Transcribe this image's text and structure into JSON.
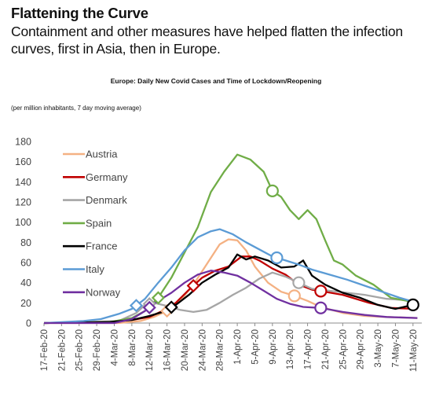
{
  "header": {
    "headline": "Flattening the Curve",
    "subhead": "Containment and other measures have helped flatten the infection curves, first in Asia, then in Europe."
  },
  "chart": {
    "title": "Europe: Daily New Covid Cases and Time of Lockdown/Reopening",
    "note": "(per million inhabitants, 7 day moving average)"
  },
  "chart_data": {
    "type": "line",
    "title": "Europe: Daily New Covid Cases and Time of Lockdown/Reopening",
    "subtitle": "(per million inhabitants, 7 day moving average)",
    "xlabel": "",
    "ylabel": "",
    "ylim": [
      0,
      180
    ],
    "yticks": [
      0,
      20,
      40,
      60,
      80,
      100,
      120,
      140,
      160,
      180
    ],
    "xtick_labels": [
      "17-Feb-20",
      "21-Feb-20",
      "25-Feb-20",
      "29-Feb-20",
      "4-Mar-20",
      "8-Mar-20",
      "12-Mar-20",
      "16-Mar-20",
      "20-Mar-20",
      "24-Mar-20",
      "28-Mar-20",
      "1-Apr-20",
      "5-Apr-20",
      "9-Apr-20",
      "13-Apr-20",
      "17-Apr-20",
      "21-Apr-20",
      "25-Apr-20",
      "29-Apr-20",
      "3-May-20",
      "7-May-20",
      "11-May-20"
    ],
    "x_start": "2020-02-17",
    "grid": false,
    "legend_position": "left",
    "markers": {
      "lockdown": "diamond",
      "reopening": "circle"
    },
    "series": [
      {
        "name": "Austria",
        "color": "#f4b183",
        "points": [
          [
            "2020-02-17",
            0
          ],
          [
            "2020-03-05",
            0
          ],
          [
            "2020-03-10",
            2
          ],
          [
            "2020-03-13",
            6
          ],
          [
            "2020-03-16",
            12
          ],
          [
            "2020-03-19",
            22
          ],
          [
            "2020-03-22",
            38
          ],
          [
            "2020-03-25",
            58
          ],
          [
            "2020-03-28",
            78
          ],
          [
            "2020-03-30",
            83
          ],
          [
            "2020-04-01",
            82
          ],
          [
            "2020-04-03",
            72
          ],
          [
            "2020-04-05",
            56
          ],
          [
            "2020-04-08",
            40
          ],
          [
            "2020-04-11",
            31
          ],
          [
            "2020-04-14",
            27
          ],
          [
            "2020-04-17",
            22
          ],
          [
            "2020-04-20",
            16
          ],
          [
            "2020-04-25",
            10
          ],
          [
            "2020-04-30",
            7
          ],
          [
            "2020-05-05",
            6
          ],
          [
            "2020-05-12",
            5
          ]
        ],
        "lockdown": "2020-03-16",
        "reopening": "2020-04-14"
      },
      {
        "name": "Germany",
        "color": "#c00000",
        "points": [
          [
            "2020-02-17",
            0
          ],
          [
            "2020-03-01",
            1
          ],
          [
            "2020-03-08",
            3
          ],
          [
            "2020-03-12",
            6
          ],
          [
            "2020-03-15",
            12
          ],
          [
            "2020-03-18",
            20
          ],
          [
            "2020-03-21",
            33
          ],
          [
            "2020-03-24",
            45
          ],
          [
            "2020-03-27",
            52
          ],
          [
            "2020-03-30",
            56
          ],
          [
            "2020-04-02",
            66
          ],
          [
            "2020-04-04",
            66
          ],
          [
            "2020-04-06",
            62
          ],
          [
            "2020-04-09",
            54
          ],
          [
            "2020-04-12",
            48
          ],
          [
            "2020-04-15",
            38
          ],
          [
            "2020-04-18",
            33
          ],
          [
            "2020-04-21",
            31
          ],
          [
            "2020-04-25",
            28
          ],
          [
            "2020-05-01",
            20
          ],
          [
            "2020-05-06",
            15
          ],
          [
            "2020-05-12",
            14
          ]
        ],
        "lockdown": "2020-03-22",
        "reopening": "2020-04-20"
      },
      {
        "name": "Denmark",
        "color": "#a6a6a6",
        "points": [
          [
            "2020-02-17",
            0
          ],
          [
            "2020-03-05",
            2
          ],
          [
            "2020-03-09",
            10
          ],
          [
            "2020-03-11",
            18
          ],
          [
            "2020-03-13",
            20
          ],
          [
            "2020-03-16",
            17
          ],
          [
            "2020-03-19",
            13
          ],
          [
            "2020-03-22",
            11
          ],
          [
            "2020-03-25",
            13
          ],
          [
            "2020-03-28",
            20
          ],
          [
            "2020-03-31",
            28
          ],
          [
            "2020-04-03",
            35
          ],
          [
            "2020-04-06",
            44
          ],
          [
            "2020-04-09",
            50
          ],
          [
            "2020-04-12",
            46
          ],
          [
            "2020-04-15",
            40
          ],
          [
            "2020-04-18",
            34
          ],
          [
            "2020-04-22",
            32
          ],
          [
            "2020-04-26",
            30
          ],
          [
            "2020-04-30",
            28
          ],
          [
            "2020-05-05",
            24
          ],
          [
            "2020-05-12",
            22
          ]
        ],
        "lockdown": "2020-03-12",
        "reopening": "2020-04-15"
      },
      {
        "name": "Spain",
        "color": "#70ad47",
        "points": [
          [
            "2020-02-17",
            0
          ],
          [
            "2020-03-03",
            1
          ],
          [
            "2020-03-08",
            5
          ],
          [
            "2020-03-11",
            12
          ],
          [
            "2020-03-14",
            25
          ],
          [
            "2020-03-17",
            45
          ],
          [
            "2020-03-20",
            70
          ],
          [
            "2020-03-23",
            95
          ],
          [
            "2020-03-26",
            130
          ],
          [
            "2020-03-29",
            150
          ],
          [
            "2020-04-01",
            167
          ],
          [
            "2020-04-04",
            162
          ],
          [
            "2020-04-07",
            150
          ],
          [
            "2020-04-09",
            131
          ],
          [
            "2020-04-11",
            125
          ],
          [
            "2020-04-13",
            112
          ],
          [
            "2020-04-15",
            103
          ],
          [
            "2020-04-17",
            112
          ],
          [
            "2020-04-19",
            103
          ],
          [
            "2020-04-21",
            82
          ],
          [
            "2020-04-23",
            62
          ],
          [
            "2020-04-25",
            58
          ],
          [
            "2020-04-28",
            47
          ],
          [
            "2020-05-02",
            38
          ],
          [
            "2020-05-06",
            25
          ],
          [
            "2020-05-12",
            20
          ]
        ],
        "lockdown": "2020-03-14",
        "reopening": "2020-04-09"
      },
      {
        "name": "France",
        "color": "#000000",
        "points": [
          [
            "2020-02-17",
            0
          ],
          [
            "2020-03-03",
            1
          ],
          [
            "2020-03-08",
            3
          ],
          [
            "2020-03-12",
            7
          ],
          [
            "2020-03-15",
            11
          ],
          [
            "2020-03-18",
            18
          ],
          [
            "2020-03-21",
            28
          ],
          [
            "2020-03-24",
            40
          ],
          [
            "2020-03-27",
            48
          ],
          [
            "2020-03-30",
            55
          ],
          [
            "2020-04-01",
            68
          ],
          [
            "2020-04-03",
            63
          ],
          [
            "2020-04-05",
            66
          ],
          [
            "2020-04-08",
            62
          ],
          [
            "2020-04-11",
            55
          ],
          [
            "2020-04-14",
            56
          ],
          [
            "2020-04-16",
            62
          ],
          [
            "2020-04-18",
            47
          ],
          [
            "2020-04-21",
            38
          ],
          [
            "2020-04-25",
            30
          ],
          [
            "2020-04-29",
            25
          ],
          [
            "2020-05-03",
            18
          ],
          [
            "2020-05-07",
            14
          ],
          [
            "2020-05-11",
            18
          ]
        ],
        "lockdown": "2020-03-17",
        "reopening": "2020-05-11"
      },
      {
        "name": "Italy",
        "color": "#5b9bd5",
        "points": [
          [
            "2020-02-17",
            0
          ],
          [
            "2020-02-26",
            2
          ],
          [
            "2020-03-01",
            4
          ],
          [
            "2020-03-05",
            9
          ],
          [
            "2020-03-08",
            14
          ],
          [
            "2020-03-11",
            24
          ],
          [
            "2020-03-14",
            40
          ],
          [
            "2020-03-17",
            55
          ],
          [
            "2020-03-20",
            72
          ],
          [
            "2020-03-23",
            85
          ],
          [
            "2020-03-26",
            91
          ],
          [
            "2020-03-28",
            93
          ],
          [
            "2020-03-31",
            88
          ],
          [
            "2020-04-03",
            80
          ],
          [
            "2020-04-06",
            73
          ],
          [
            "2020-04-09",
            66
          ],
          [
            "2020-04-12",
            62
          ],
          [
            "2020-04-15",
            58
          ],
          [
            "2020-04-18",
            53
          ],
          [
            "2020-04-22",
            48
          ],
          [
            "2020-04-26",
            43
          ],
          [
            "2020-04-30",
            37
          ],
          [
            "2020-05-04",
            31
          ],
          [
            "2020-05-08",
            25
          ],
          [
            "2020-05-12",
            20
          ]
        ],
        "lockdown": "2020-03-09",
        "reopening": "2020-04-10"
      },
      {
        "name": "Norway",
        "color": "#7030a0",
        "points": [
          [
            "2020-02-17",
            0
          ],
          [
            "2020-03-04",
            0
          ],
          [
            "2020-03-08",
            4
          ],
          [
            "2020-03-11",
            12
          ],
          [
            "2020-03-14",
            22
          ],
          [
            "2020-03-17",
            30
          ],
          [
            "2020-03-20",
            40
          ],
          [
            "2020-03-23",
            48
          ],
          [
            "2020-03-26",
            52
          ],
          [
            "2020-03-29",
            50
          ],
          [
            "2020-04-01",
            47
          ],
          [
            "2020-04-04",
            40
          ],
          [
            "2020-04-07",
            32
          ],
          [
            "2020-04-10",
            24
          ],
          [
            "2020-04-13",
            19
          ],
          [
            "2020-04-16",
            16
          ],
          [
            "2020-04-20",
            15
          ],
          [
            "2020-04-25",
            11
          ],
          [
            "2020-04-30",
            8
          ],
          [
            "2020-05-05",
            6
          ],
          [
            "2020-05-12",
            5
          ]
        ],
        "lockdown": "2020-03-12",
        "reopening": "2020-04-20"
      }
    ]
  }
}
